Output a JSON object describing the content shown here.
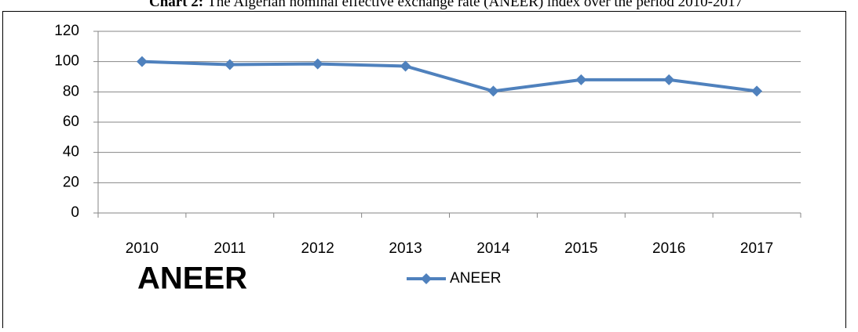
{
  "chart_data": {
    "type": "line",
    "title_label": "Chart 2:",
    "title": "The Algerian nominal effective exchange rate (ANEER) index over the period 2010-2017",
    "annotation": "ANEER",
    "categories": [
      "2010",
      "2011",
      "2012",
      "2013",
      "2014",
      "2015",
      "2016",
      "2017"
    ],
    "series": [
      {
        "name": "ANEER",
        "color": "#4f81bd",
        "values": [
          100,
          98,
          98.5,
          97,
          80.5,
          88,
          88,
          80.5
        ]
      }
    ],
    "ylim": [
      0,
      120
    ],
    "yticks": [
      0,
      20,
      40,
      60,
      80,
      100,
      120
    ],
    "grid": true,
    "legend": "bottom"
  }
}
